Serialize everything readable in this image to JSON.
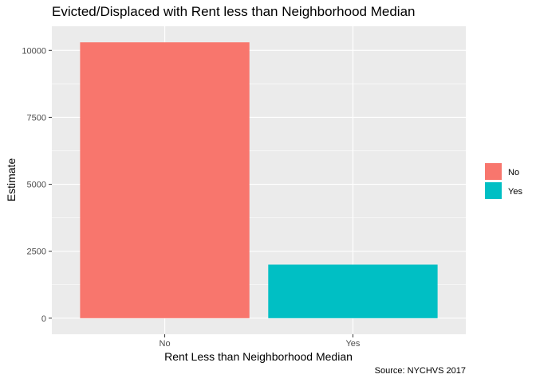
{
  "chart_data": {
    "type": "bar",
    "title": "Evicted/Displaced with Rent less than Neighborhood Median",
    "xlabel": "Rent Less than Neighborhood Median",
    "ylabel": "Estimate",
    "caption": "Source: NYCHVS 2017",
    "categories": [
      "No",
      "Yes"
    ],
    "values": [
      10300,
      2000
    ],
    "colors": [
      "#F8766D",
      "#00BFC4"
    ],
    "ylim": [
      -600,
      10900
    ],
    "yticks": [
      0,
      2500,
      5000,
      7500,
      10000
    ],
    "ytick_labels": [
      "0",
      "2500",
      "5000",
      "7500",
      "10000"
    ],
    "legend": {
      "position": "right",
      "entries": [
        {
          "label": "No",
          "color": "#F8766D"
        },
        {
          "label": "Yes",
          "color": "#00BFC4"
        }
      ]
    },
    "grid": true,
    "panel_background": "#EBEBEB"
  }
}
